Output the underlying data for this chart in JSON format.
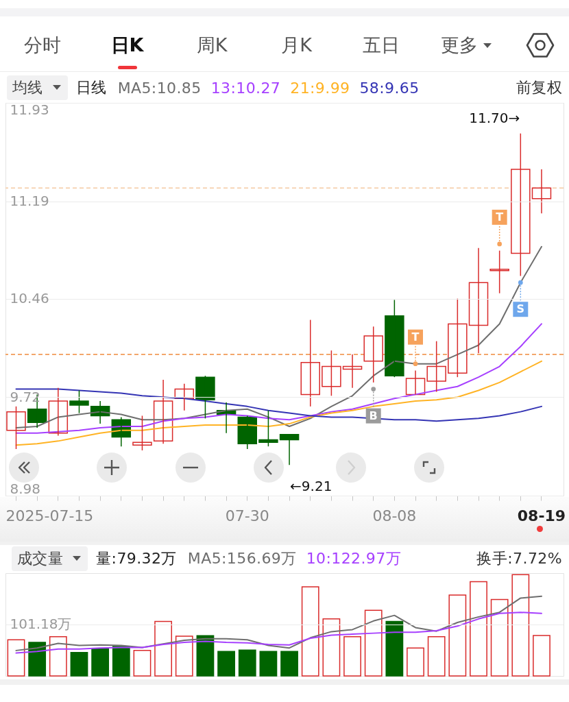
{
  "chart_data": [
    {
      "type": "other",
      "annotations": [
        "分时",
        "日K",
        "周K",
        "月K",
        "五日",
        "更多"
      ]
    },
    {
      "type": "candlestick",
      "categories": [
        null,
        null,
        null,
        null,
        null,
        null,
        null,
        null,
        null,
        null,
        null,
        "07-30",
        null,
        null,
        null,
        null,
        null,
        null,
        "08-08",
        null,
        null,
        null,
        null,
        null,
        null,
        "08-19"
      ],
      "xlabel": "2025-07-15",
      "ohlc": [
        [
          9.47,
          9.65,
          9.33,
          9.61
        ],
        [
          9.63,
          9.74,
          9.49,
          9.53
        ],
        [
          9.45,
          9.79,
          9.43,
          9.69
        ],
        [
          9.69,
          9.77,
          9.6,
          9.66
        ],
        [
          9.65,
          9.69,
          9.52,
          9.58
        ],
        [
          9.55,
          9.57,
          9.35,
          9.42
        ],
        [
          9.36,
          9.58,
          9.32,
          9.38
        ],
        [
          9.39,
          9.85,
          9.37,
          9.69
        ],
        [
          9.71,
          9.82,
          9.62,
          9.78
        ],
        [
          9.87,
          9.88,
          9.56,
          9.7
        ],
        [
          9.62,
          9.68,
          9.45,
          9.59
        ],
        [
          9.57,
          9.58,
          9.33,
          9.37
        ],
        [
          9.4,
          9.62,
          9.35,
          9.38
        ],
        [
          9.44,
          9.44,
          9.21,
          9.4
        ],
        [
          9.74,
          10.3,
          9.65,
          9.98
        ],
        [
          9.8,
          10.07,
          9.73,
          9.95
        ],
        [
          9.93,
          10.04,
          9.79,
          9.95
        ],
        [
          9.99,
          10.25,
          9.83,
          10.18
        ],
        [
          10.33,
          10.45,
          9.87,
          9.88
        ],
        [
          9.74,
          9.92,
          9.74,
          9.86
        ],
        [
          9.84,
          10.14,
          9.76,
          9.95
        ],
        [
          9.9,
          10.46,
          9.87,
          10.27
        ],
        [
          10.26,
          10.84,
          10.05,
          10.58
        ],
        [
          10.67,
          10.82,
          10.5,
          10.68
        ],
        [
          10.8,
          11.7,
          10.63,
          11.43
        ],
        [
          11.21,
          11.43,
          11.1,
          11.29
        ]
      ],
      "colors": [
        "#d92a2a",
        "#006400",
        "#d92a2a",
        "#006400",
        "#006400",
        "#006400",
        "#d92a2a",
        "#d92a2a",
        "#d92a2a",
        "#006400",
        "#006400",
        "#006400",
        "#006400",
        "#006400",
        "#d92a2a",
        "#d92a2a",
        "#d92a2a",
        "#d92a2a",
        "#006400",
        "#d92a2a",
        "#d92a2a",
        "#d92a2a",
        "#d92a2a",
        "#d92a2a",
        "#d92a2a",
        "#d92a2a"
      ],
      "series": [
        {
          "type": "line",
          "name": "MA5:10.85",
          "color": "#6e6e6e",
          "values": [
            9.49,
            9.5,
            9.57,
            9.59,
            9.61,
            9.59,
            9.55,
            9.55,
            9.56,
            9.59,
            9.62,
            9.63,
            9.57,
            9.5,
            9.56,
            9.65,
            9.73,
            9.88,
            9.99,
            9.97,
            9.97,
            10.04,
            10.11,
            10.27,
            10.58,
            10.85
          ]
        },
        {
          "type": "line",
          "name": "13:10.27",
          "color": "#a640ff",
          "values": [
            9.45,
            9.45,
            9.46,
            9.47,
            9.49,
            9.5,
            9.5,
            9.54,
            9.56,
            9.57,
            9.59,
            9.58,
            9.56,
            9.55,
            9.58,
            9.61,
            9.63,
            9.67,
            9.71,
            9.74,
            9.77,
            9.8,
            9.87,
            9.95,
            10.1,
            10.27
          ]
        },
        {
          "type": "line",
          "name": "21:9.99",
          "color": "#ffb324",
          "values": [
            9.36,
            9.37,
            9.39,
            9.42,
            9.45,
            9.47,
            9.47,
            9.49,
            9.5,
            9.51,
            9.51,
            9.51,
            9.5,
            9.52,
            9.57,
            9.6,
            9.62,
            9.65,
            9.67,
            9.69,
            9.7,
            9.72,
            9.77,
            9.83,
            9.91,
            9.99
          ]
        },
        {
          "type": "line",
          "name": "58:9.65",
          "color": "#3434b4",
          "values": [
            9.78,
            9.78,
            9.78,
            9.77,
            9.76,
            9.75,
            9.73,
            9.72,
            9.71,
            9.69,
            9.67,
            9.65,
            9.62,
            9.6,
            9.58,
            9.57,
            9.57,
            null,
            9.55,
            9.55,
            9.54,
            9.55,
            9.56,
            9.58,
            9.61,
            9.65
          ]
        },
        {
          "type": "scatter",
          "marker": "circle",
          "values": [
            null,
            null,
            null,
            null,
            null,
            null,
            null,
            null,
            null,
            null,
            null,
            null,
            null,
            null,
            null,
            null,
            null,
            9.78,
            null,
            9.97,
            null,
            null,
            null,
            10.87,
            10.58,
            null
          ],
          "colors": [
            null,
            null,
            null,
            null,
            null,
            null,
            null,
            null,
            null,
            null,
            null,
            null,
            null,
            null,
            null,
            null,
            null,
            "#9b9b9b",
            null,
            "#f6a25c",
            null,
            null,
            null,
            "#f6a25c",
            "#6ea7ec",
            null
          ],
          "value_labels": [
            null,
            null,
            null,
            null,
            null,
            null,
            null,
            null,
            null,
            null,
            null,
            null,
            null,
            null,
            null,
            null,
            null,
            "B",
            null,
            "T",
            null,
            null,
            null,
            "T",
            "S",
            null
          ]
        }
      ],
      "ylim": [
        8.98,
        11.93
      ],
      "yticks": [
        8.98,
        9.72,
        10.46,
        11.19,
        11.93
      ],
      "grid": "y",
      "legend": "top",
      "ref_lines": [
        {
          "axis": "y",
          "value": 11.29,
          "color": "#f5caa3",
          "line_style": "dashed"
        },
        {
          "axis": "y",
          "value": 10.04,
          "color": "#f08a3c",
          "line_style": "dashed"
        }
      ],
      "annotations": [
        "均线",
        "日线",
        "前复权",
        "11.70→",
        "←9.21"
      ]
    },
    {
      "type": "bar",
      "categories": [
        null,
        null,
        null,
        null,
        null,
        null,
        null,
        null,
        null,
        null,
        null,
        null,
        null,
        null,
        null,
        null,
        null,
        null,
        null,
        null,
        null,
        null,
        null,
        null,
        null,
        null
      ],
      "series": [
        {
          "type": "bar",
          "values": [
            71,
            66,
            77,
            46,
            53,
            58,
            50,
            107,
            78,
            79,
            48,
            51,
            48,
            48,
            175,
            112,
            77,
            129,
            107,
            55,
            77,
            159,
            185,
            150,
            199,
            79.32
          ],
          "colors": [
            "#d92a2a",
            "#006400",
            "#d92a2a",
            "#006400",
            "#006400",
            "#006400",
            "#d92a2a",
            "#d92a2a",
            "#d92a2a",
            "#006400",
            "#006400",
            "#006400",
            "#006400",
            "#006400",
            "#d92a2a",
            "#d92a2a",
            "#d92a2a",
            "#d92a2a",
            "#006400",
            "#d92a2a",
            "#d92a2a",
            "#d92a2a",
            "#d92a2a",
            "#d92a2a",
            "#d92a2a",
            "#d92a2a"
          ]
        },
        {
          "type": "line",
          "name": "MA5:156.69万",
          "color": "#6e6e6e",
          "values": [
            50,
            55,
            64,
            60,
            61,
            60,
            56,
            63,
            70,
            73,
            73,
            71,
            60,
            55,
            75,
            87,
            91,
            108,
            119,
            95,
            88,
            105,
            116,
            125,
            153,
            156.69
          ]
        },
        {
          "type": "line",
          "name": "10:122.97万",
          "color": "#a640ff",
          "values": [
            45,
            48,
            53,
            53,
            55,
            56,
            56,
            62,
            66,
            68,
            66,
            65,
            62,
            61,
            74,
            80,
            82,
            84,
            86,
            86,
            89,
            98,
            112,
            123,
            125,
            122.97
          ]
        }
      ],
      "ylim": [
        0,
        202
      ],
      "yticks": [
        {
          "value": 101.18,
          "label": "101.18万"
        }
      ],
      "grid": "y",
      "tick_labels": "y",
      "legend": "top",
      "annotations": [
        "成交量",
        "量:79.32万",
        "换手:7.72%"
      ]
    }
  ]
}
